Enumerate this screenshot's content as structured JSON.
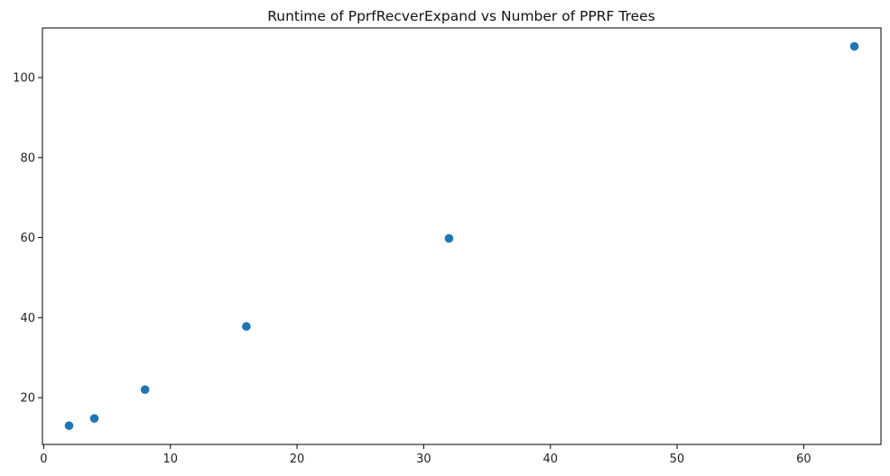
{
  "chart_data": {
    "type": "scatter",
    "title": "Runtime of PprfRecverExpand vs Number of PPRF Trees",
    "xlabel": "",
    "ylabel": "",
    "x": [
      2,
      4,
      8,
      16,
      32,
      64
    ],
    "y": [
      13.0,
      14.8,
      22.0,
      37.8,
      59.8,
      107.8
    ],
    "xlim": [
      -0.1,
      66.1
    ],
    "ylim": [
      8.3,
      112.4
    ],
    "xticks": [
      0,
      10,
      20,
      30,
      40,
      50,
      60
    ],
    "yticks": [
      20,
      40,
      60,
      80,
      100
    ],
    "marker_color": "#1f77b4",
    "grid": false,
    "legend": "none"
  }
}
